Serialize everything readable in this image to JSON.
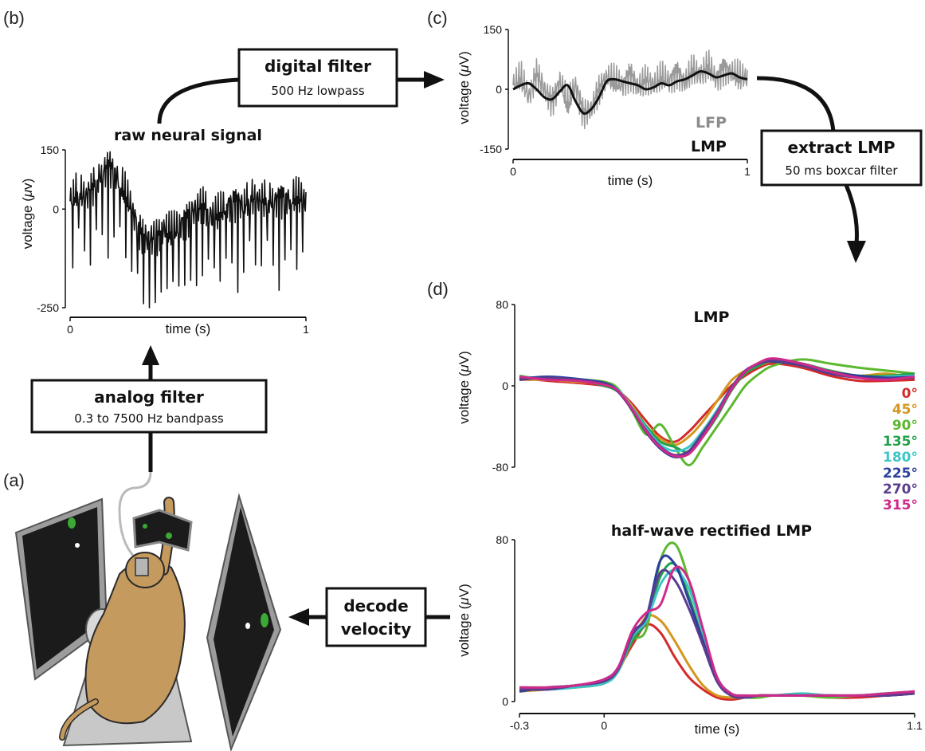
{
  "panel_letters": {
    "a": "(a)",
    "b": "(b)",
    "c": "(c)",
    "d": "(d)"
  },
  "boxes": {
    "digital_filter": {
      "title": "digital filter",
      "sub": "500 Hz lowpass"
    },
    "analog_filter": {
      "title": "analog filter",
      "sub": "0.3 to 7500 Hz  bandpass"
    },
    "extract_lmp": {
      "title": "extract LMP",
      "sub": "50 ms boxcar filter"
    },
    "decode_velocity": {
      "line1": "decode",
      "line2": "velocity"
    }
  },
  "colors": {
    "raw": "#111111",
    "lfp": "#9a9a9a",
    "lmp": "#111111",
    "lfp_label": "#8c8c8c",
    "screen_dark": "#1b1b1b",
    "screen_frame": "#9c9c9c",
    "target": "#3aa935",
    "monkey_fur": "#c49a5e",
    "monkey_outline": "#2a2a2a"
  },
  "chart_data": [
    {
      "id": "raw",
      "type": "line",
      "title": "raw neural signal",
      "xlabel": "time (s)",
      "ylabel_prefix": "voltage (",
      "ylabel_mu": "μ",
      "ylabel_suffix": "v)",
      "xlim": [
        0,
        1
      ],
      "ylim": [
        -250,
        150
      ],
      "xticks": [
        "0",
        "1"
      ],
      "yticks": [
        "150",
        "0",
        "-250"
      ],
      "series": [
        {
          "values": [
            20,
            45,
            30,
            60,
            90,
            110,
            80,
            40,
            -10,
            -60,
            -80,
            -70,
            -50,
            -60,
            -40,
            -20,
            0,
            10,
            -20,
            -10,
            10,
            20,
            10,
            30,
            20,
            25,
            20,
            30,
            25,
            30,
            20
          ]
        }
      ]
    },
    {
      "id": "filtered",
      "type": "line",
      "xlabel": "time (s)",
      "ylabel_prefix": "voltage (",
      "ylabel_mu": "μ",
      "ylabel_suffix": "V)",
      "xlim": [
        0,
        1
      ],
      "ylim": [
        -150,
        150
      ],
      "xticks": [
        "0",
        "1"
      ],
      "yticks": [
        "150",
        "0",
        "-150"
      ],
      "series": [
        {
          "name": "LFP",
          "values": [
            10,
            30,
            -20,
            40,
            0,
            -30,
            20,
            -40,
            10,
            -60,
            -50,
            0,
            30,
            20,
            10,
            40,
            5,
            25,
            10,
            30,
            20,
            45,
            15,
            50,
            35,
            60,
            25,
            55,
            40,
            30,
            30
          ]
        },
        {
          "name": "LMP",
          "values": [
            0,
            10,
            15,
            0,
            -20,
            -25,
            -5,
            10,
            -30,
            -60,
            -50,
            -20,
            20,
            25,
            20,
            15,
            10,
            0,
            5,
            15,
            10,
            20,
            25,
            35,
            45,
            40,
            30,
            35,
            40,
            30,
            25
          ]
        }
      ]
    },
    {
      "id": "lmp",
      "type": "line",
      "title": "LMP",
      "ylabel_prefix": "voltage (",
      "ylabel_mu": "μ",
      "ylabel_suffix": "V)",
      "xlim": [
        -0.3,
        1.1
      ],
      "ylim": [
        -80,
        80
      ],
      "yticks": [
        "80",
        "0",
        "-80"
      ],
      "x": [
        -0.3,
        -0.2,
        -0.1,
        0,
        0.05,
        0.1,
        0.15,
        0.2,
        0.25,
        0.3,
        0.35,
        0.4,
        0.45,
        0.5,
        0.55,
        0.6,
        0.7,
        0.8,
        0.9,
        1.0,
        1.1
      ],
      "series": [
        {
          "name": "0°",
          "values": [
            8,
            5,
            3,
            0,
            -5,
            -18,
            -35,
            -50,
            -55,
            -45,
            -30,
            -15,
            0,
            10,
            18,
            22,
            18,
            10,
            5,
            5,
            6
          ]
        },
        {
          "name": "45°",
          "values": [
            6,
            6,
            4,
            2,
            -5,
            -20,
            -40,
            -52,
            -58,
            -50,
            -35,
            -15,
            5,
            15,
            20,
            24,
            20,
            15,
            10,
            12,
            8
          ]
        },
        {
          "name": "90°",
          "values": [
            10,
            6,
            6,
            4,
            -3,
            -25,
            -48,
            -38,
            -60,
            -78,
            -60,
            -40,
            -20,
            0,
            12,
            20,
            26,
            22,
            18,
            15,
            12
          ]
        },
        {
          "name": "135°",
          "values": [
            8,
            8,
            6,
            0,
            -6,
            -22,
            -40,
            -55,
            -60,
            -65,
            -50,
            -30,
            -5,
            12,
            20,
            25,
            22,
            15,
            10,
            10,
            12
          ]
        },
        {
          "name": "180°",
          "values": [
            9,
            7,
            5,
            2,
            -4,
            -22,
            -42,
            -58,
            -64,
            -60,
            -44,
            -24,
            -2,
            14,
            22,
            26,
            20,
            14,
            8,
            9,
            10
          ]
        },
        {
          "name": "225°",
          "values": [
            7,
            9,
            7,
            3,
            -5,
            -24,
            -46,
            -62,
            -70,
            -66,
            -48,
            -28,
            -4,
            14,
            22,
            24,
            20,
            14,
            10,
            8,
            9
          ]
        },
        {
          "name": "270°",
          "values": [
            6,
            8,
            6,
            2,
            -6,
            -24,
            -44,
            -60,
            -68,
            -64,
            -46,
            -26,
            -2,
            15,
            22,
            25,
            20,
            12,
            8,
            7,
            8
          ]
        },
        {
          "name": "315°",
          "values": [
            9,
            6,
            5,
            1,
            -5,
            -23,
            -45,
            -61,
            -69,
            -67,
            -50,
            -28,
            -4,
            14,
            23,
            27,
            22,
            14,
            8,
            6,
            9
          ]
        }
      ]
    },
    {
      "id": "hwr",
      "type": "line",
      "title": "half-wave rectified LMP",
      "xlabel": "time (s)",
      "ylabel_prefix": "voltage (",
      "ylabel_mu": "μ",
      "ylabel_suffix": "V)",
      "xlim": [
        -0.3,
        1.1
      ],
      "ylim": [
        0,
        80
      ],
      "xticks": [
        "-0.3",
        "0",
        "1.1"
      ],
      "yticks": [
        "80",
        "0"
      ],
      "x": [
        -0.3,
        -0.2,
        -0.1,
        0,
        0.05,
        0.1,
        0.15,
        0.2,
        0.25,
        0.3,
        0.35,
        0.4,
        0.45,
        0.5,
        0.55,
        0.6,
        0.7,
        0.8,
        0.9,
        1.0,
        1.1
      ],
      "series": [
        {
          "name": "0°",
          "values": [
            6,
            6,
            8,
            10,
            16,
            28,
            38,
            34,
            22,
            12,
            6,
            2,
            1,
            2,
            3,
            3,
            3,
            2,
            2,
            3,
            4
          ]
        },
        {
          "name": "45°",
          "values": [
            5,
            6,
            7,
            9,
            15,
            30,
            42,
            40,
            30,
            18,
            8,
            3,
            2,
            2,
            3,
            3,
            4,
            3,
            3,
            4,
            5
          ]
        },
        {
          "name": "90°",
          "values": [
            7,
            7,
            8,
            10,
            16,
            30,
            36,
            70,
            78,
            60,
            34,
            12,
            3,
            2,
            2,
            3,
            3,
            2,
            3,
            3,
            4
          ]
        },
        {
          "name": "135°",
          "values": [
            6,
            7,
            8,
            10,
            16,
            30,
            40,
            62,
            68,
            52,
            30,
            10,
            3,
            2,
            3,
            3,
            3,
            3,
            3,
            4,
            4
          ]
        },
        {
          "name": "180°",
          "values": [
            6,
            6,
            7,
            9,
            15,
            32,
            40,
            58,
            65,
            56,
            34,
            12,
            4,
            2,
            3,
            3,
            4,
            3,
            3,
            4,
            5
          ]
        },
        {
          "name": "225°",
          "values": [
            5,
            7,
            8,
            11,
            17,
            34,
            42,
            70,
            68,
            50,
            30,
            10,
            3,
            2,
            3,
            3,
            3,
            3,
            3,
            3,
            4
          ]
        },
        {
          "name": "270°",
          "values": [
            6,
            6,
            8,
            10,
            16,
            33,
            42,
            64,
            60,
            46,
            28,
            10,
            3,
            2,
            3,
            3,
            3,
            3,
            3,
            3,
            4
          ]
        },
        {
          "name": "315°",
          "values": [
            7,
            7,
            8,
            11,
            17,
            35,
            44,
            48,
            66,
            60,
            36,
            12,
            4,
            3,
            3,
            3,
            3,
            3,
            3,
            4,
            5
          ]
        }
      ]
    }
  ],
  "series_colors": [
    "#d42a2a",
    "#d4961e",
    "#5cb82f",
    "#24a04a",
    "#3cc6c6",
    "#2c3f9c",
    "#5a3d8f",
    "#cf2a8a"
  ]
}
